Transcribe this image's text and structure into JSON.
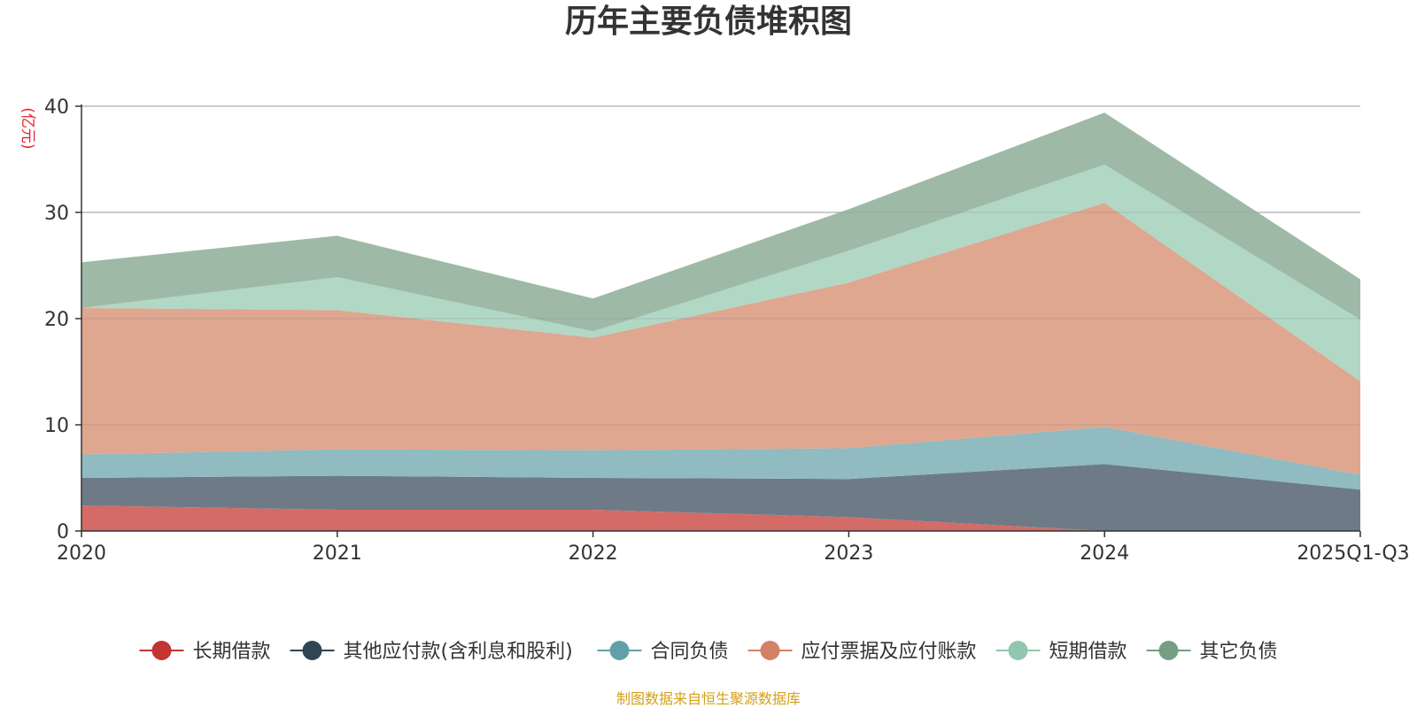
{
  "chart_data": {
    "type": "area",
    "stacked": true,
    "title": "历年主要负债堆积图",
    "unit_label": "(亿元)",
    "source": "制图数据来自恒生聚源数据库",
    "categories": [
      "2020",
      "2021",
      "2022",
      "2023",
      "2024",
      "2025Q1-Q3"
    ],
    "ylim": [
      0,
      40
    ],
    "yticks": [
      0,
      10,
      20,
      30,
      40
    ],
    "grid": true,
    "legend_position": "bottom",
    "series": [
      {
        "name": "长期借款",
        "color": "#c23531",
        "fill": "#d46b67",
        "values": [
          2.4,
          2.0,
          2.0,
          1.3,
          0.0,
          0.0
        ]
      },
      {
        "name": "其他应付款(含利息和股利)",
        "color": "#2f4554",
        "fill": "#6e7b86",
        "values": [
          2.6,
          3.2,
          3.0,
          3.6,
          6.3,
          3.9
        ]
      },
      {
        "name": "合同负债",
        "color": "#61a0a8",
        "fill": "#90bbc0",
        "values": [
          2.2,
          2.5,
          2.6,
          2.9,
          3.5,
          1.4
        ]
      },
      {
        "name": "应付票据及应付账款",
        "color": "#d48265",
        "fill": "#dfa690",
        "values": [
          13.8,
          13.1,
          10.6,
          15.6,
          21.1,
          8.8
        ]
      },
      {
        "name": "短期借款",
        "color": "#91c7ae",
        "fill": "#b1d7c5",
        "values": [
          0.0,
          3.1,
          0.6,
          3.0,
          3.6,
          5.8
        ]
      },
      {
        "name": "其它负债",
        "color": "#749f83",
        "fill": "#9eba a6",
        "values": [
          4.3,
          3.9,
          3.1,
          3.9,
          4.9,
          3.8
        ]
      }
    ]
  }
}
